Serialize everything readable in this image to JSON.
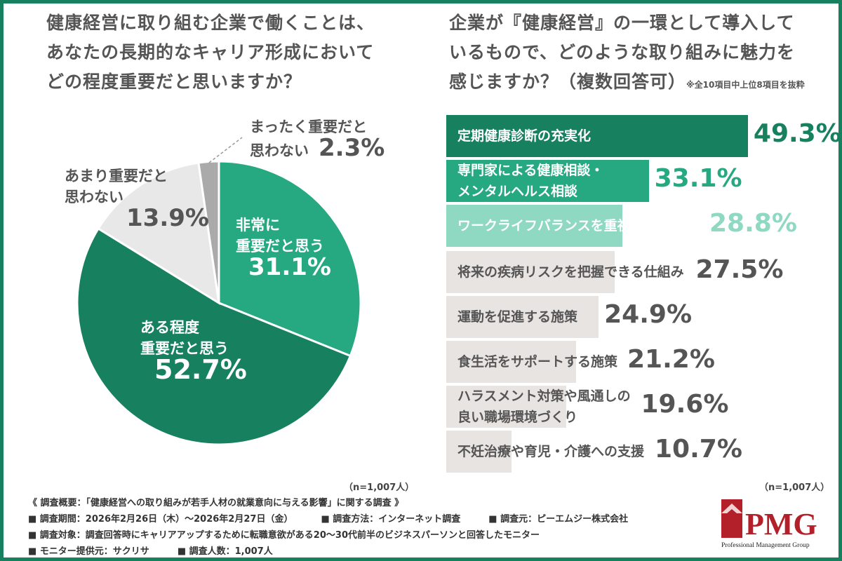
{
  "left": {
    "title": [
      "健康経営に取り組む企業で働くことは、",
      "あなたの長期的なキャリア形成において",
      "どの程度重要だと思いますか？"
    ],
    "n": "（n=1,007人）"
  },
  "right": {
    "title": [
      "企業が『健康経営』の一環として導入して",
      "いるもので、どのような取り組みに魅力を",
      "感じますか？（複数回答可）"
    ],
    "note": "※全10項目中上位8項目を抜粋",
    "n": "（n=1,007人）"
  },
  "chart_data": [
    {
      "type": "pie",
      "start": "12 o'clock clockwise",
      "slices": [
        {
          "label": "非常に重要だと思う",
          "label_lines": [
            "非常に",
            "重要だと思う"
          ],
          "value": 31.1,
          "display": "31.1%",
          "color": "#26a880"
        },
        {
          "label": "ある程度重要だと思う",
          "label_lines": [
            "ある程度",
            "重要だと思う"
          ],
          "value": 52.7,
          "display": "52.7%",
          "color": "#17805f"
        },
        {
          "label": "あまり重要だと思わない",
          "label_lines": [
            "あまり重要だと",
            "思わない"
          ],
          "value": 13.9,
          "display": "13.9%",
          "color": "#e8e8e8"
        },
        {
          "label": "まったく重要だと思わない",
          "label_lines": [
            "まったく重要だと",
            "思わない"
          ],
          "value": 2.3,
          "display": "2.3%",
          "color": "#aaaaaa"
        }
      ]
    },
    {
      "type": "bar",
      "orientation": "horizontal",
      "bars": [
        {
          "label": [
            "定期健康診断の充実化"
          ],
          "value": 49.3,
          "display": "49.3%",
          "color": "#17805f",
          "value_color": "#17805f",
          "text_color": "#fff"
        },
        {
          "label": [
            "専門家による健康相談・",
            "メンタルヘルス相談"
          ],
          "value": 33.1,
          "display": "33.1%",
          "color": "#26a880",
          "value_color": "#26a880",
          "text_color": "#fff"
        },
        {
          "label": [
            "ワークライフバランスを重視した働き方"
          ],
          "value": 28.8,
          "display": "28.8%",
          "color": "#8fd8c2",
          "value_color": "#8fd8c2",
          "text_color": "#fff"
        },
        {
          "label": [
            "将来の疾病リスクを把握できる仕組み"
          ],
          "value": 27.5,
          "display": "27.5%",
          "color": "#e8e4e2",
          "value_color": "#555",
          "text_color": "#555"
        },
        {
          "label": [
            "運動を促進する施策"
          ],
          "value": 24.9,
          "display": "24.9%",
          "color": "#e8e4e2",
          "value_color": "#555",
          "text_color": "#555"
        },
        {
          "label": [
            "食生活をサポートする施策"
          ],
          "value": 21.2,
          "display": "21.2%",
          "color": "#e8e4e2",
          "value_color": "#555",
          "text_color": "#555"
        },
        {
          "label": [
            "ハラスメント対策や風通しの",
            "良い職場環境づくり"
          ],
          "value": 19.6,
          "display": "19.6%",
          "color": "#e8e4e2",
          "value_color": "#555",
          "text_color": "#555"
        },
        {
          "label": [
            "不妊治療や育児・介護への支援"
          ],
          "value": 10.7,
          "display": "10.7%",
          "color": "#e8e4e2",
          "value_color": "#555",
          "text_color": "#555"
        }
      ]
    }
  ],
  "footer": {
    "summary": "《 調査概要：「健康経営への取り組みが若手人材の就業意向に与える影響」に関する調査 》",
    "period": "■ 調査期間：2026年2月26日（木）～2026年2月27日（金）",
    "method": "■ 調査方法：インターネット調査",
    "org": "■ 調査元：ピーエムジー株式会社",
    "target": "■ 調査対象：調査回答時にキャリアアップするために転職意欲がある20～30代前半のビジネスパーソンと回答したモニター",
    "provider": "■ モニター提供元：サクリサ",
    "count": "■ 調査人数：1,007人"
  },
  "logo": {
    "text": "PMG",
    "sub": "Professional Management Group",
    "color": "#b3202a"
  }
}
